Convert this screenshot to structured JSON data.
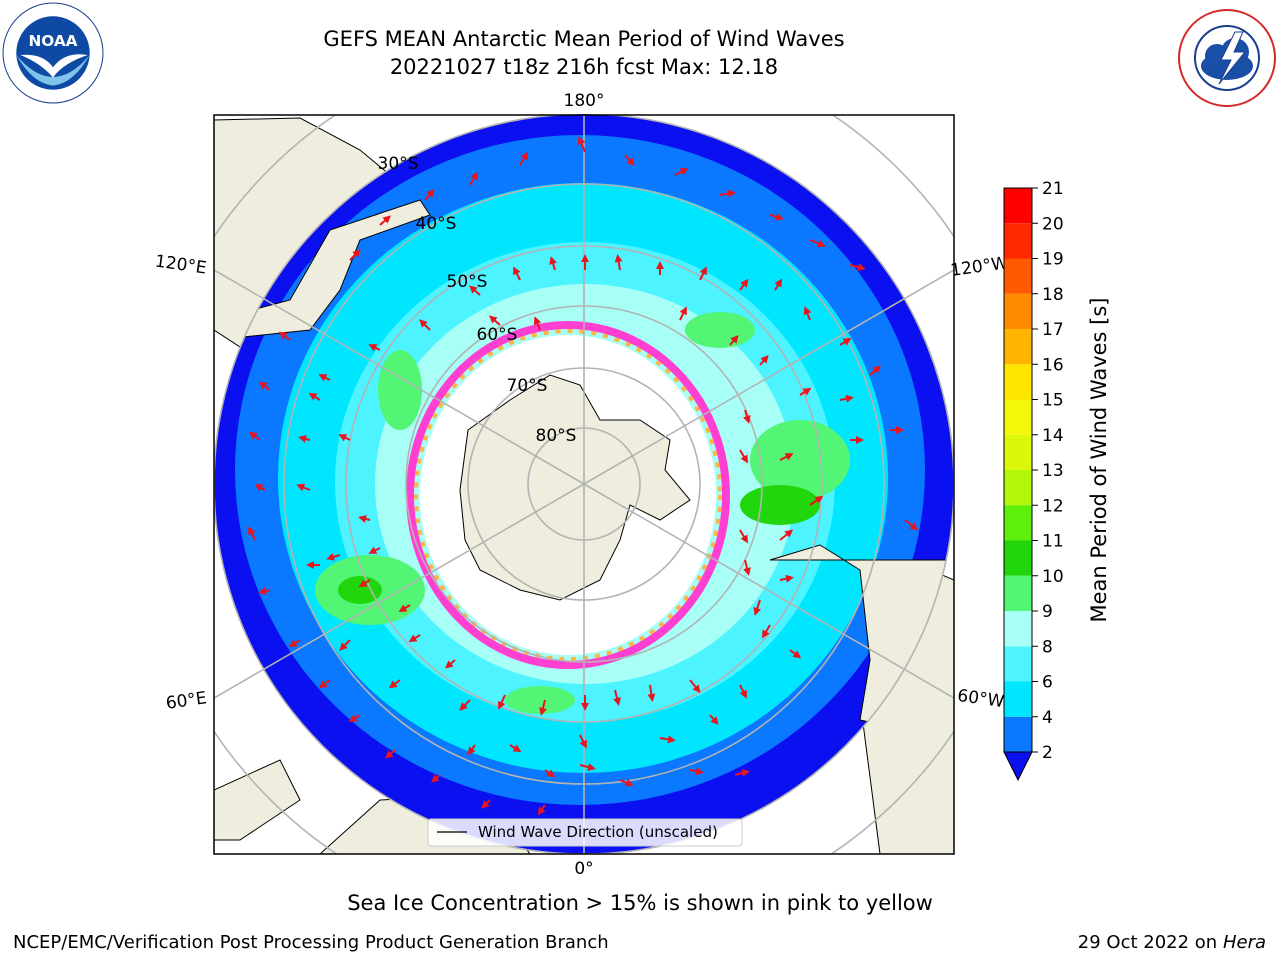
{
  "header": {
    "title_line1": "GEFS MEAN Antarctic Mean Period of Wind Waves",
    "title_line2": "20221027 t18z 216h fcst   Max: 12.18"
  },
  "logos": {
    "left": "noaa-logo",
    "right": "national-weather-service-logo"
  },
  "map": {
    "projection": "south-polar-stereographic",
    "longitude_labels": [
      "180°",
      "120°E",
      "120°W",
      "60°E",
      "60°W",
      "0°"
    ],
    "latitude_labels": [
      "30°S",
      "40°S",
      "50°S",
      "60°S",
      "70°S",
      "80°S"
    ],
    "legend_label": "Wind Wave Direction (unscaled)",
    "arrow_color": "#e8141e",
    "land_color": "#efedde",
    "sea_ice_note": "Sea Ice Concentration > 15% is shown in pink to yellow"
  },
  "colorbar": {
    "label": "Mean Period of Wind Waves [s]",
    "ticks": [
      "2",
      "4",
      "6",
      "8",
      "9",
      "10",
      "11",
      "12",
      "13",
      "14",
      "15",
      "16",
      "17",
      "18",
      "19",
      "20",
      "21"
    ],
    "colors": [
      "#0a10f0",
      "#0a78ff",
      "#00e6ff",
      "#4df3ff",
      "#a8fff5",
      "#52f574",
      "#22d60e",
      "#5ef00a",
      "#b2f70a",
      "#dbf70a",
      "#f3f70a",
      "#ffe600",
      "#ffb400",
      "#ff8c00",
      "#ff5a00",
      "#ff2800",
      "#ff0000"
    ],
    "extend": "min"
  },
  "footer": {
    "credit": "NCEP/EMC/Verification Post Processing Product Generation Branch",
    "date": "29 Oct 2022 on",
    "host": "Hera"
  }
}
